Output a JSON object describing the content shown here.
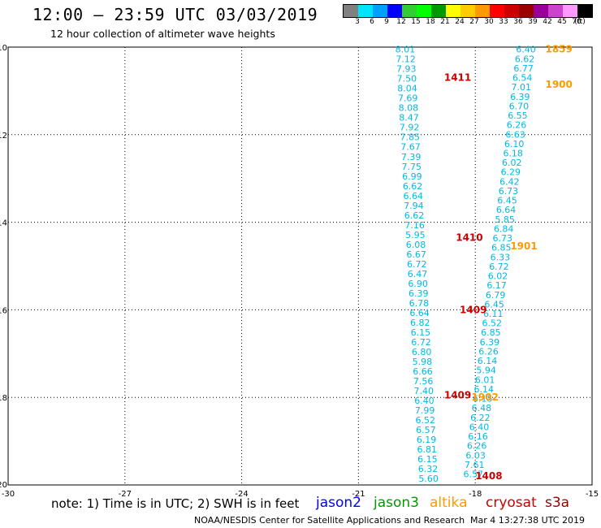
{
  "title": "12:00 – 23:59 UTC 03/03/2019",
  "subtitle": "12 hour collection of altimeter wave heights",
  "colorbar": {
    "labels": [
      "3",
      "6",
      "9",
      "12",
      "15",
      "18",
      "21",
      "24",
      "27",
      "30",
      "33",
      "36",
      "39",
      "42",
      "45",
      "70",
      "(ft)"
    ],
    "colors": [
      "#808080",
      "#00e5ff",
      "#00a0ff",
      "#0000ff",
      "#33cc33",
      "#00ff00",
      "#009900",
      "#ffff00",
      "#ffcc00",
      "#ff9900",
      "#ff0000",
      "#cc0000",
      "#990000",
      "#990099",
      "#cc44cc",
      "#ff99ff",
      "#000000"
    ]
  },
  "note": "note:  1) Time is in UTC;  2) SWH is in feet",
  "satellites": [
    {
      "name": "jason2",
      "color": "#0000ff"
    },
    {
      "name": "jason3",
      "color": "#009900"
    },
    {
      "name": "altika",
      "color": "#ff9900"
    },
    {
      "name": "cryosat",
      "color": "#cc0000"
    },
    {
      "name": "s3a",
      "color": "#990000"
    }
  ],
  "footer": "NOAA/NESDIS Center for Satellite Applications and Research",
  "footer_date": "Mar  4 13:27:38 UTC 2019",
  "chart_data": {
    "type": "scatter",
    "xlim": [
      -30,
      -15
    ],
    "ylim": [
      -20,
      -10
    ],
    "x_ticks": [
      -30,
      -27,
      -24,
      -21,
      -18,
      -15
    ],
    "y_ticks": [
      -10,
      -12,
      -14,
      -16,
      -18,
      -20
    ],
    "grid": true,
    "tracks": [
      {
        "name": "track-west",
        "color": "#00b8e6",
        "start": [
          -19.8,
          -10.05
        ],
        "end": [
          -19.2,
          -19.85
        ],
        "values": [
          "8.01",
          "7.12",
          "7.93",
          "7.50",
          "8.04",
          "7.69",
          "8.08",
          "8.47",
          "7.92",
          "7.85",
          "7.67",
          "7.39",
          "7.75",
          "6.99",
          "6.62",
          "6.64",
          "7.94",
          "6.62",
          "7.16",
          "5.95",
          "6.08",
          "6.67",
          "6.72",
          "6.47",
          "6.90",
          "6.39",
          "6.78",
          "6.64",
          "6.82",
          "6.15",
          "6.72",
          "6.80",
          "5.98",
          "6.66",
          "7.56",
          "7.40",
          "6.40",
          "7.99",
          "6.52",
          "6.57",
          "6.19",
          "6.81",
          "6.15",
          "6.32",
          "5.60"
        ]
      },
      {
        "name": "track-east",
        "color": "#00b8e6",
        "start": [
          -16.7,
          -10.05
        ],
        "end": [
          -18.05,
          -19.75
        ],
        "values": [
          "6.40",
          "6.62",
          "6.77",
          "6.54",
          "7.01",
          "6.39",
          "6.70",
          "6.55",
          "6.26",
          "6.63",
          "6.10",
          "6.18",
          "6.02",
          "6.29",
          "6.42",
          "6.73",
          "6.45",
          "6.64",
          "5.85",
          "6.84",
          "6.73",
          "6.85",
          "6.33",
          "6.72",
          "6.02",
          "6.17",
          "6.79",
          "6.45",
          "6.11",
          "6.52",
          "6.85",
          "6.39",
          "6.26",
          "6.14",
          "5.94",
          "6.01",
          "6.14",
          "6.15",
          "6.48",
          "6.22",
          "6.40",
          "6.16",
          "6.26",
          "6.03",
          "7.61",
          "6.57"
        ]
      }
    ],
    "time_labels": [
      {
        "text": "1859",
        "color": "#ff9900",
        "x": -16.2,
        "y": -10.05
      },
      {
        "text": "1900",
        "color": "#ff9900",
        "x": -16.2,
        "y": -10.85
      },
      {
        "text": "1411",
        "color": "#cc0000",
        "x": -18.8,
        "y": -10.7
      },
      {
        "text": "1410",
        "color": "#cc0000",
        "x": -18.5,
        "y": -14.35
      },
      {
        "text": "1901",
        "color": "#ff9900",
        "x": -17.1,
        "y": -14.55
      },
      {
        "text": "1409",
        "color": "#cc0000",
        "x": -18.4,
        "y": -16.0
      },
      {
        "text": "1902",
        "color": "#ff9900",
        "x": -18.1,
        "y": -18.0
      },
      {
        "text": "1409",
        "color": "#cc0000",
        "x": -18.8,
        "y": -17.95
      },
      {
        "text": "1408",
        "color": "#cc0000",
        "x": -18.0,
        "y": -19.8
      }
    ]
  }
}
